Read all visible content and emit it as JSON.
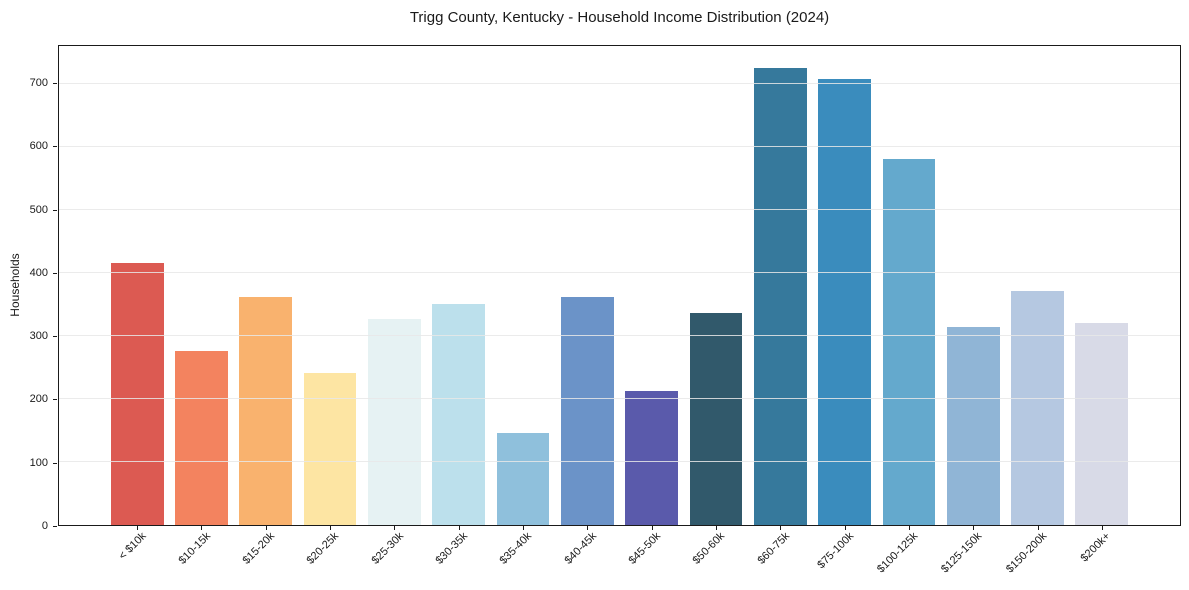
{
  "title": "Trigg County, Kentucky - Household Income Distribution (2024)",
  "chart_data": {
    "type": "bar",
    "title": "Trigg County, Kentucky - Household Income Distribution (2024)",
    "xlabel": "",
    "ylabel": "Households",
    "categories": [
      "< $10k",
      "$10-15k",
      "$15-20k",
      "$20-25k",
      "$25-30k",
      "$30-35k",
      "$35-40k",
      "$40-45k",
      "$45-50k",
      "$50-60k",
      "$60-75k",
      "$75-100k",
      "$100-125k",
      "$125-150k",
      "$150-200k",
      "$200k+"
    ],
    "values": [
      416,
      276,
      362,
      241,
      327,
      351,
      146,
      362,
      212,
      336,
      725,
      708,
      580,
      314,
      372,
      320
    ],
    "bar_colors": [
      "#dc5a52",
      "#f3835f",
      "#f9b26e",
      "#fde5a3",
      "#e6f2f3",
      "#bce0ec",
      "#8fc0dc",
      "#6b93c8",
      "#5a5aab",
      "#31596b",
      "#36799c",
      "#3a8cbd",
      "#64a9cd",
      "#90b5d6",
      "#b5c8e1",
      "#d8dae7"
    ],
    "ylim": [
      0,
      760
    ],
    "yticks": [
      0,
      100,
      200,
      300,
      400,
      500,
      600,
      700
    ],
    "grid": "horizontal",
    "legend_position": "none"
  },
  "colors": {
    "background": "#ffffff",
    "gridline": "#e7e7e7",
    "spine": "#1a1a1a",
    "text": "#1a1a1a"
  }
}
